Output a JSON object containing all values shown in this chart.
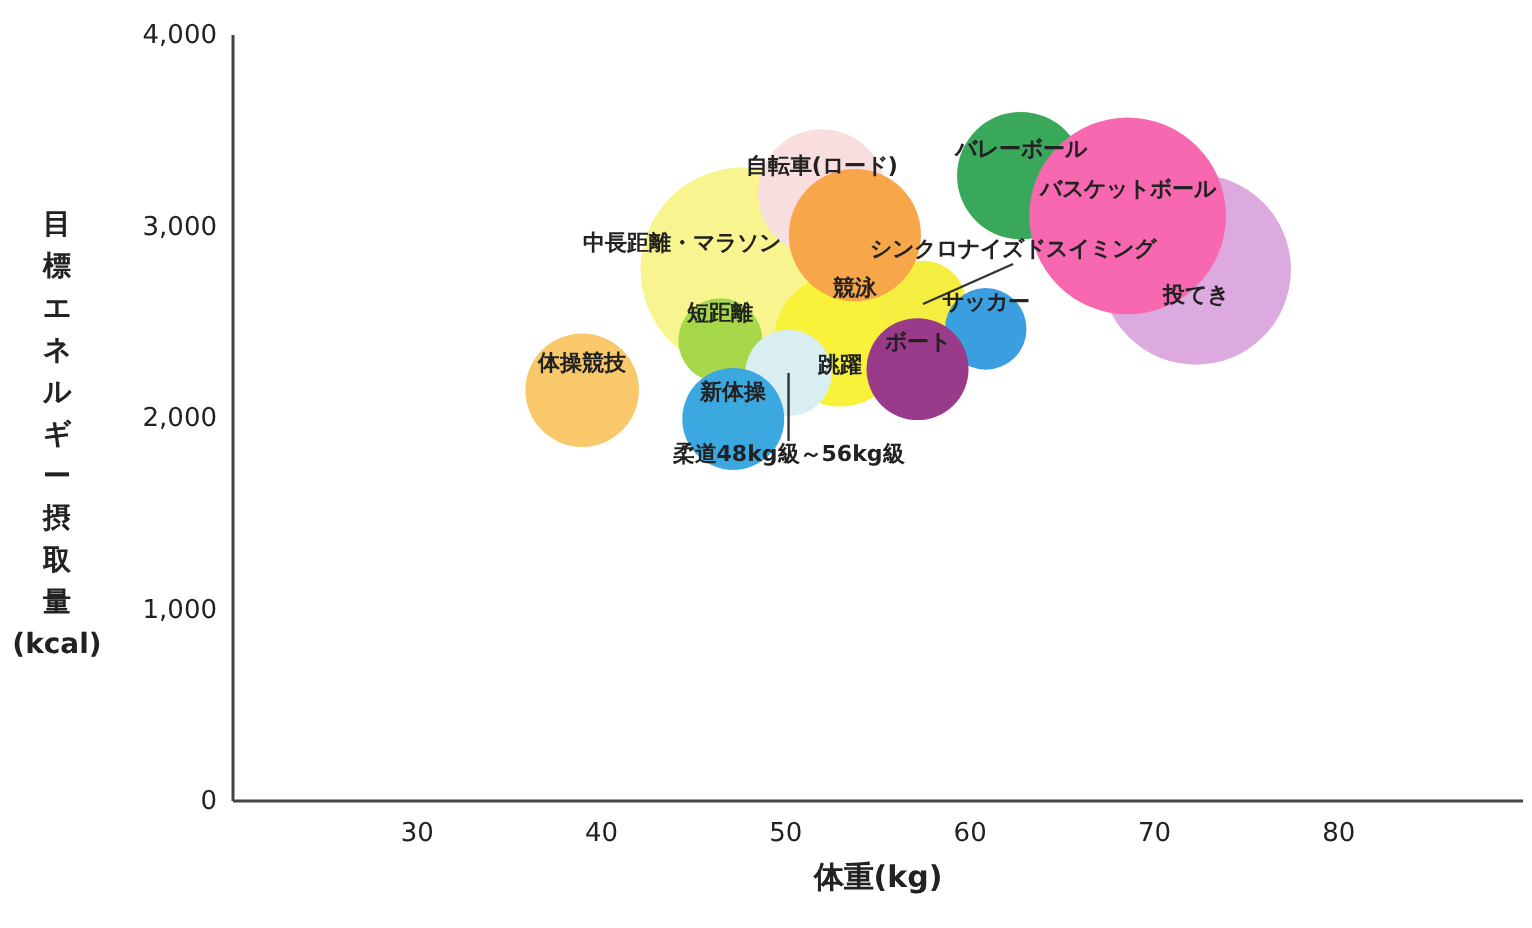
{
  "chart_data": {
    "type": "bubble",
    "xlabel": "体重(kg)",
    "ylabel": "目標エネルギー摂取量(kcal)",
    "xlim": [
      20,
      90
    ],
    "ylim": [
      0,
      4000
    ],
    "xticks": [
      30,
      40,
      50,
      60,
      70,
      80
    ],
    "yticks": [
      0,
      {
        "value": 1000,
        "label": "1,000"
      },
      {
        "value": 2000,
        "label": "2,000"
      },
      {
        "value": 3000,
        "label": "3,000"
      },
      {
        "value": 4000,
        "label": "4,000"
      }
    ],
    "series": [
      {
        "name": "中長距離・マラソン",
        "color": "#f8f490",
        "x": [
          47.7
        ],
        "values": [
          2770
        ],
        "sizes": [
          1
        ]
      },
      {
        "name": "自転車(ロード)",
        "color": "#f8dede",
        "x": [
          52
        ],
        "values": [
          3170
        ],
        "sizes": [
          0.39
        ]
      },
      {
        "name": "競泳",
        "color": "#f8a64a",
        "x": [
          53.8
        ],
        "values": [
          2950
        ],
        "sizes": [
          0.42
        ]
      },
      {
        "name": "バレーボール",
        "color": "#3aa85a",
        "x": [
          62.8
        ],
        "values": [
          3260
        ],
        "sizes": [
          0.39
        ]
      },
      {
        "name": "投てき",
        "color": "#dcaade",
        "x": [
          72.3
        ],
        "values": [
          2770
        ],
        "sizes": [
          0.87
        ]
      },
      {
        "name": "バスケットボール",
        "color": "#f868b0",
        "x": [
          68.6
        ],
        "values": [
          3050
        ],
        "sizes": [
          0.93
        ]
      },
      {
        "name": "体操競技",
        "color": "#f8c86a",
        "x": [
          39
        ],
        "values": [
          2140
        ],
        "sizes": [
          0.31
        ]
      },
      {
        "name": "短距離",
        "color": "#a6d84a",
        "x": [
          46.5
        ],
        "values": [
          2400
        ],
        "sizes": [
          0.17
        ]
      },
      {
        "name": "柔道48kg級～56kg級",
        "color": "#d8eef0",
        "x": [
          50.2
        ],
        "values": [
          2230
        ],
        "sizes": [
          0.18
        ]
      },
      {
        "name": "新体操",
        "color": "#3ca8e0",
        "x": [
          47.2
        ],
        "values": [
          1990
        ],
        "sizes": [
          0.25
        ]
      },
      {
        "name": "跳躍",
        "color": "#f8f23a",
        "x": [
          53
        ],
        "values": [
          2400
        ],
        "sizes": [
          0.42
        ]
      },
      {
        "name": "シンクロナイズドスイミング",
        "color": "#f4ee40",
        "x": [
          57.5
        ],
        "values": [
          2590
        ],
        "sizes": [
          0.18
        ]
      },
      {
        "name": "サッカー",
        "color": "#3a9ee0",
        "x": [
          60.9
        ],
        "values": [
          2460
        ],
        "sizes": [
          0.16
        ]
      },
      {
        "name": "ボート",
        "color": "#9a3a8a",
        "x": [
          57.2
        ],
        "values": [
          2250
        ],
        "sizes": [
          0.25
        ]
      }
    ]
  }
}
